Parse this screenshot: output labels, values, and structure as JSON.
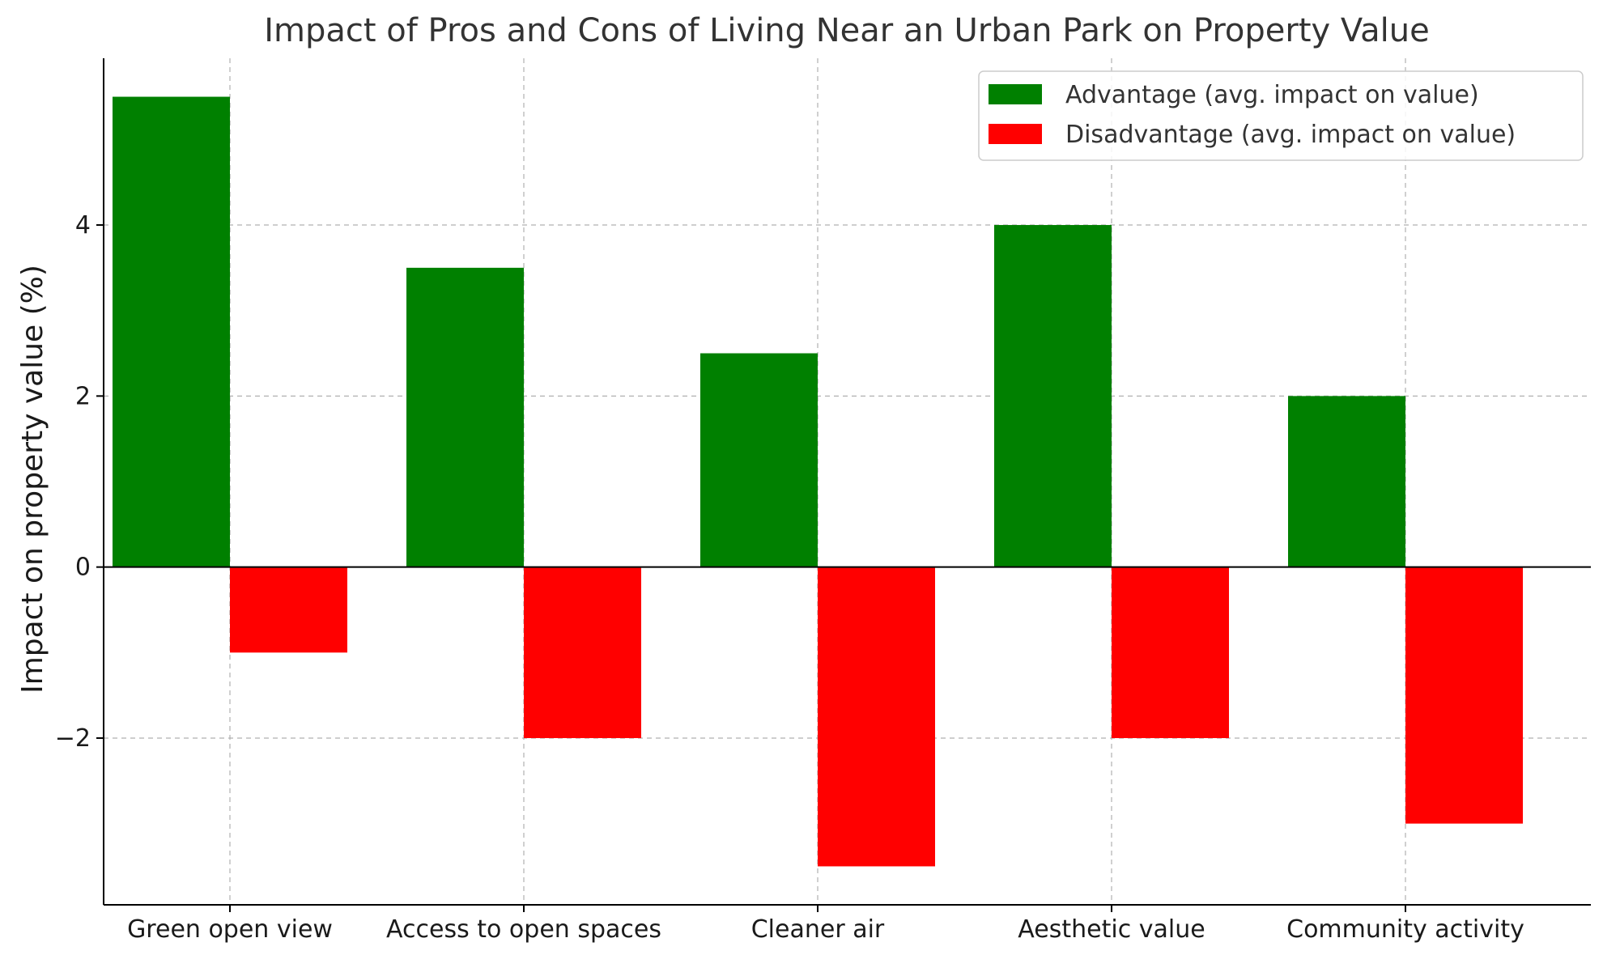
{
  "chart_data": {
    "type": "bar",
    "title": "Impact of Pros and Cons of Living Near an Urban Park on Property Value",
    "xlabel": "",
    "ylabel": "Impact on property value (%)",
    "categories": [
      "Green open view",
      "Access to open spaces",
      "Cleaner air",
      "Aesthetic value",
      "Community activity"
    ],
    "series": [
      {
        "name": "Advantage (avg. impact on value)",
        "color": "#008000",
        "values": [
          5.5,
          3.5,
          2.5,
          4.0,
          2.0
        ]
      },
      {
        "name": "Disadvantage (avg. impact on value)",
        "color": "#ff0000",
        "values": [
          -1.0,
          -2.0,
          -3.5,
          -2.0,
          -3.0
        ]
      }
    ],
    "ylim": [
      -3.95,
      5.95
    ],
    "yticks": [
      -2,
      0,
      2,
      4
    ],
    "ytick_labels": [
      "−2",
      "0",
      "2",
      "4"
    ],
    "grid": true,
    "legend_position": "top-right",
    "zero_line": true
  }
}
